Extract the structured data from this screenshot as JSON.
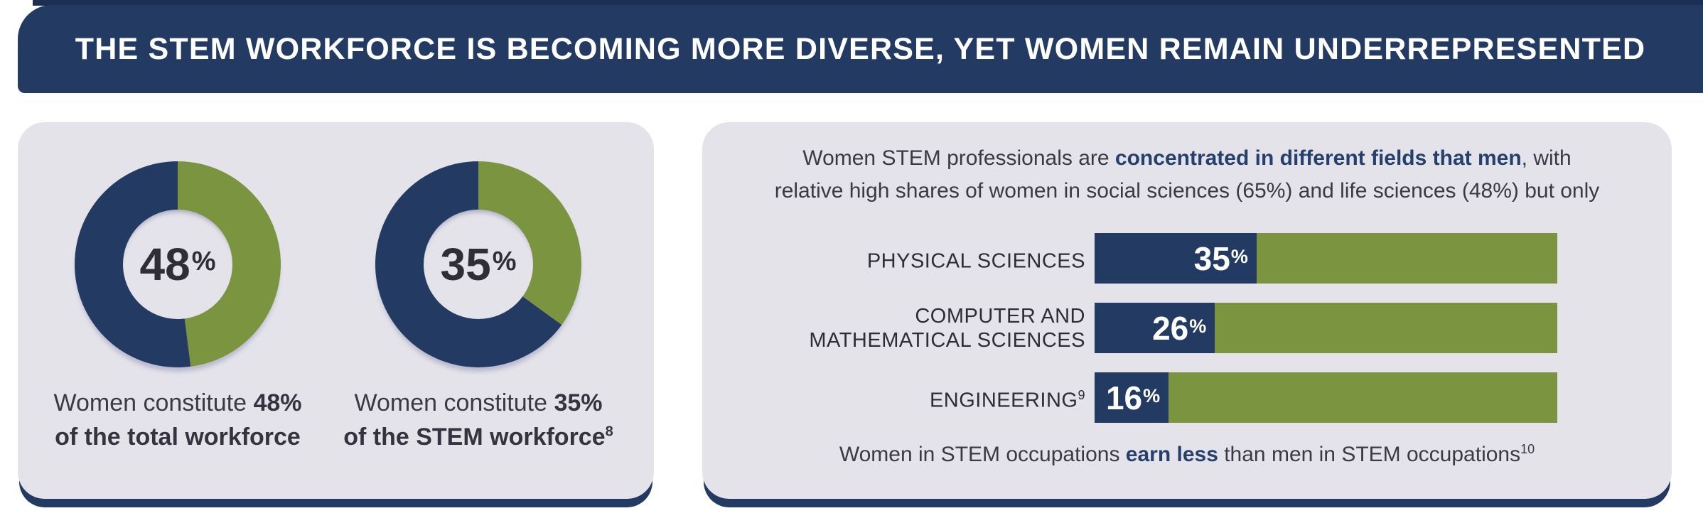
{
  "colors": {
    "navy": "#233a63",
    "green": "#7b9440",
    "panel_bg": "#e4e3ea",
    "text_dark": "#3b3943",
    "emphasis_navy": "#26406d",
    "title_white": "#ffffff"
  },
  "header": {
    "title": "THE STEM WORKFORCE IS BECOMING MORE DIVERSE, YET WOMEN REMAIN UNDERREPRESENTED"
  },
  "left_panel": {
    "donuts": [
      {
        "value": "48",
        "sign": "%",
        "caption_pre": "Women constitute ",
        "caption_bold": "48%",
        "caption_line2": "of the total workforce",
        "caption_sup": ""
      },
      {
        "value": "35",
        "sign": "%",
        "caption_pre": "Women constitute ",
        "caption_bold": "35%",
        "caption_line2": "of the STEM workforce",
        "caption_sup": "8"
      }
    ]
  },
  "right_panel": {
    "intro": {
      "line1_pre": "Women STEM professionals are ",
      "line1_bold": "concentrated in different fields that men",
      "line1_post": ", with",
      "line2": "relative high shares of women in social sciences (65%) and life sciences (48%) but only"
    },
    "bars": [
      {
        "label_line1": "PHYSICAL SCIENCES",
        "label_line2": "",
        "label_sup": "",
        "pct": "35",
        "pct_sign": "%"
      },
      {
        "label_line1": "COMPUTER AND",
        "label_line2": "MATHEMATICAL SCIENCES",
        "label_sup": "",
        "pct": "26",
        "pct_sign": "%"
      },
      {
        "label_line1": "ENGINEERING",
        "label_line2": "",
        "label_sup": "9",
        "pct": "16",
        "pct_sign": "%"
      }
    ],
    "footnote": {
      "pre": "Women in STEM occupations ",
      "bold": "earn less",
      "post": " than men in STEM occupations",
      "sup": "10"
    }
  },
  "chart_data": [
    {
      "type": "pie",
      "subtype": "donut",
      "title": "Women constitute 48% of the total workforce",
      "labels": [
        "Women",
        "Men"
      ],
      "values": [
        48,
        52
      ],
      "colors": [
        "#7b9440",
        "#233a63"
      ],
      "center_label": "48%",
      "start_angle_deg": 0,
      "direction": "clockwise"
    },
    {
      "type": "pie",
      "subtype": "donut",
      "title": "Women constitute 35% of the STEM workforce",
      "labels": [
        "Women",
        "Men"
      ],
      "values": [
        35,
        65
      ],
      "colors": [
        "#7b9440",
        "#233a63"
      ],
      "center_label": "35%",
      "start_angle_deg": 0,
      "direction": "clockwise"
    },
    {
      "type": "bar",
      "orientation": "horizontal",
      "stacked": true,
      "normalized_to_100": true,
      "categories": [
        "PHYSICAL SCIENCES",
        "COMPUTER AND MATHEMATICAL SCIENCES",
        "ENGINEERING"
      ],
      "series": [
        {
          "name": "Women",
          "values": [
            35,
            26,
            16
          ],
          "color": "#233a63"
        },
        {
          "name": "Men",
          "values": [
            65,
            74,
            84
          ],
          "color": "#7b9440"
        }
      ],
      "value_labels": [
        "35%",
        "26%",
        "16%"
      ],
      "xlim": [
        0,
        100
      ],
      "grid": false,
      "legend": "none"
    }
  ]
}
